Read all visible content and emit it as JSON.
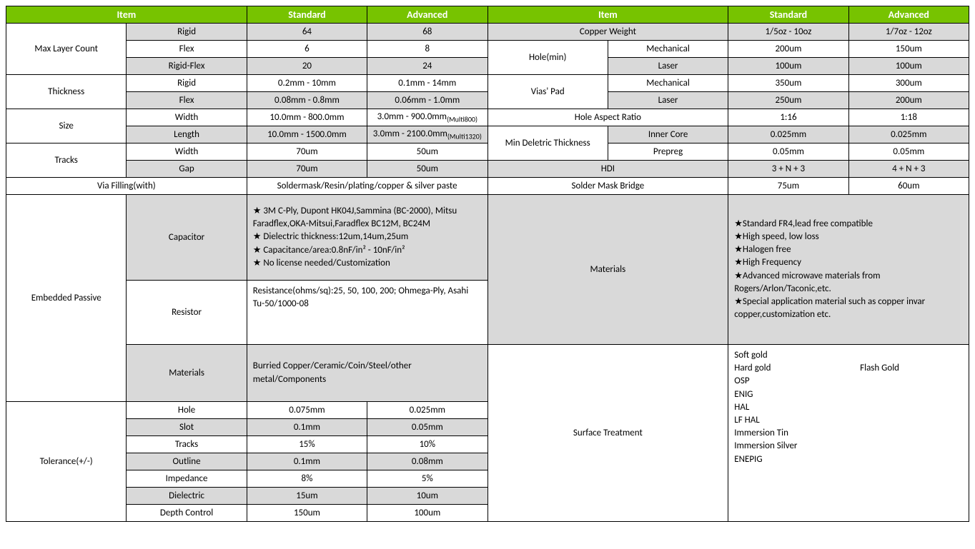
{
  "colors": {
    "header_bg": "#77c300",
    "header_fg": "#ffffff",
    "gray": "#d9d9d9",
    "border": "#000000",
    "text": "#000000"
  },
  "headers": {
    "item": "Item",
    "standard": "Standard",
    "advanced": "Advanced"
  },
  "left": {
    "maxLayerCount": {
      "label": "Max Layer Count",
      "rows": [
        {
          "sub": "Rigid",
          "std": "64",
          "adv": "68"
        },
        {
          "sub": "Flex",
          "std": "6",
          "adv": "8"
        },
        {
          "sub": "Rigid-Flex",
          "std": "20",
          "adv": "24"
        }
      ]
    },
    "thickness": {
      "label": "Thickness",
      "rows": [
        {
          "sub": "Rigid",
          "std": "0.2mm - 10mm",
          "adv": "0.1mm - 14mm"
        },
        {
          "sub": "Flex",
          "std": "0.08mm - 0.8mm",
          "adv": "0.06mm - 1.0mm"
        }
      ]
    },
    "size": {
      "label": "Size",
      "rows": [
        {
          "sub": "Width",
          "std": "10.0mm - 800.0mm",
          "adv": "3.0mm - 900.0mm",
          "advSub": "(Multi800)"
        },
        {
          "sub": "Length",
          "std": "10.0mm - 1500.0mm",
          "adv": "3.0mm - 2100.0mm",
          "advSub": "(Multi1320)"
        }
      ]
    },
    "tracks": {
      "label": "Tracks",
      "rows": [
        {
          "sub": "Width",
          "std": "70um",
          "adv": "50um"
        },
        {
          "sub": "Gap",
          "std": "70um",
          "adv": "50um"
        }
      ]
    },
    "viaFilling": {
      "label": "Via Filling(with)",
      "value": "Soldermask/Resin/plating/copper & silver paste"
    },
    "embeddedPassive": {
      "label": "Embedded Passive",
      "capacitor": {
        "sub": "Capacitor",
        "lines": [
          "★ 3M C-Ply, Dupont HK04J,Sammina (BC-2000), Mitsu Faradflex,OKA-Mitsui,Faradflex BC12M, BC24M",
          "★ Dielectric thickness:12um,14um,25um",
          "★ Capacitance/area:0.8nF/in² - 10nF/in²",
          "★ No license needed/Customization"
        ]
      },
      "resistor": {
        "sub": "Resistor",
        "value": "Resistance(ohms/sq):25, 50, 100, 200; Ohmega-Ply, Asahi Tu-50/1000-08"
      },
      "materials": {
        "sub": "Materials",
        "value": "Burried Copper/Ceramic/Coin/Steel/other metal/Components"
      }
    },
    "tolerance": {
      "label": "Tolerance(+/-)",
      "rows": [
        {
          "sub": "Hole",
          "std": "0.075mm",
          "adv": "0.025mm"
        },
        {
          "sub": "Slot",
          "std": "0.1mm",
          "adv": "0.05mm"
        },
        {
          "sub": "Tracks",
          "std": "15%",
          "adv": "10%"
        },
        {
          "sub": "Outline",
          "std": "0.1mm",
          "adv": "0.08mm"
        },
        {
          "sub": "Impedance",
          "std": "8%",
          "adv": "5%"
        },
        {
          "sub": "Dielectric",
          "std": "15um",
          "adv": "10um"
        },
        {
          "sub": "Depth Control",
          "std": "150um",
          "adv": "100um"
        }
      ]
    }
  },
  "right": {
    "copperWeight": {
      "label": "Copper Weight",
      "std": "1/5oz - 10oz",
      "adv": "1/7oz - 12oz"
    },
    "holeMin": {
      "label": "Hole(min)",
      "rows": [
        {
          "sub": "Mechanical",
          "std": "200um",
          "adv": "150um"
        },
        {
          "sub": "Laser",
          "std": "100um",
          "adv": "100um"
        }
      ]
    },
    "viasPad": {
      "label": "Vias' Pad",
      "rows": [
        {
          "sub": "Mechanical",
          "std": "350um",
          "adv": "300um"
        },
        {
          "sub": "Laser",
          "std": "250um",
          "adv": "200um"
        }
      ]
    },
    "holeAspectRatio": {
      "label": "Hole Aspect Ratio",
      "std": "1:16",
      "adv": "1:18"
    },
    "minDeletric": {
      "label": "Min Deletric Thickness",
      "rows": [
        {
          "sub": "Inner Core",
          "std": "0.025mm",
          "adv": "0.025mm"
        },
        {
          "sub": "Prepreg",
          "std": "0.05mm",
          "adv": "0.05mm"
        }
      ]
    },
    "hdi": {
      "label": "HDI",
      "std": "3 + N + 3",
      "adv": "4 + N + 3"
    },
    "solderMaskBridge": {
      "label": "Solder Mask Bridge",
      "std": "75um",
      "adv": "60um"
    },
    "materials": {
      "label": "Materials",
      "lines": [
        "★Standard FR4,lead free compatible",
        "★High speed, low loss",
        "★Halogen free",
        "★High Frequency",
        "★Advanced microwave materials from Rogers/Arlon/Taconic,etc.",
        "★Special application material such as copper invar copper,customization etc."
      ]
    },
    "surfaceTreatment": {
      "label": "Surface Treatment",
      "col1": [
        "Soft gold",
        "Hard gold",
        "OSP",
        "ENIG",
        "HAL",
        "LF HAL",
        "Immersion Tin",
        "Immersion Silver",
        "ENEPIG"
      ],
      "col2": [
        "Flash Gold"
      ]
    }
  }
}
